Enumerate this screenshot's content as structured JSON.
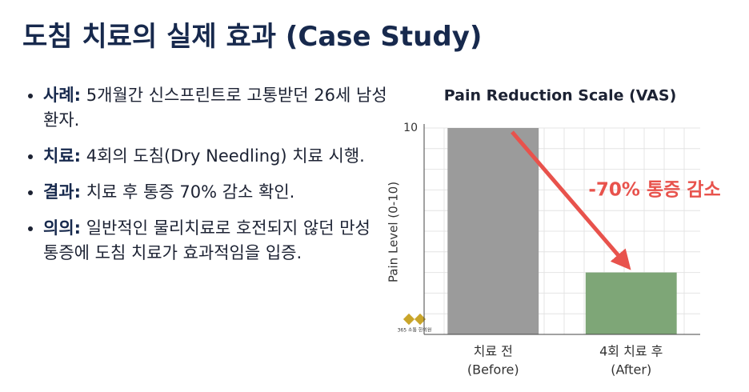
{
  "header": {
    "title": "도침 치료의 실제 효과 (Case Study)"
  },
  "bullets": [
    {
      "label": "사례:",
      "text": "5개월간 신스프린트로 고통받던 26세 남성 환자."
    },
    {
      "label": "치료:",
      "text": "4회의 도침(Dry Needling) 치료 시행."
    },
    {
      "label": "결과:",
      "text": "치료 후 통증 70% 감소 확인."
    },
    {
      "label": "의의:",
      "text": "일반적인 물리치료로 호전되지 않던 만성 통증에 도침 치료가 효과적임을 입증."
    }
  ],
  "logo_text": "365 소통 한의원",
  "chart_data": {
    "type": "bar",
    "title": "Pain Reduction Scale (VAS)",
    "y_label": "Pain Level (0-10)",
    "categories": [
      [
        "치료 전",
        "(Before)"
      ],
      [
        "4회 치료 후",
        "(After)"
      ]
    ],
    "values": [
      10,
      3
    ],
    "colors": [
      "#9b9b9b",
      "#7ea677"
    ],
    "ylim": [
      0,
      10
    ],
    "yticks": [
      10
    ],
    "minor_yticks": [
      1,
      2,
      3,
      4,
      5,
      6,
      7,
      8,
      9
    ],
    "grid": true,
    "annotation": "-70% 통증 감소"
  }
}
